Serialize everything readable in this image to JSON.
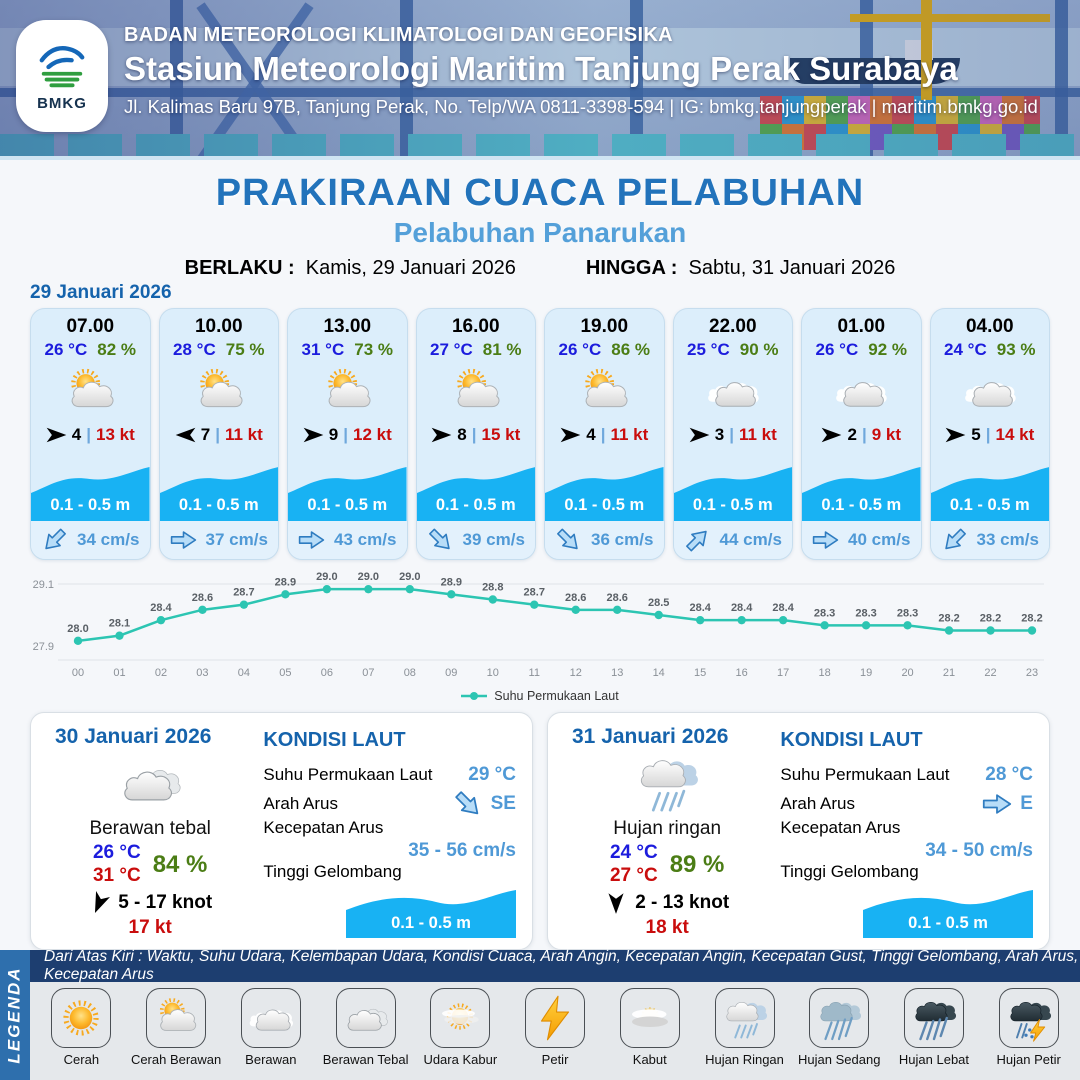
{
  "header": {
    "org": "BADAN METEOROLOGI KLIMATOLOGI DAN GEOFISIKA",
    "station": "Stasiun Meteorologi Maritim Tanjung Perak Surabaya",
    "address": "Jl. Kalimas Baru 97B, Tanjung Perak, No. Telp/WA 0811-3398-594 | IG: bmkg.tanjungperak | maritim.bmkg.go.id",
    "logo_text": "BMKG"
  },
  "title": {
    "main": "PRAKIRAAN CUACA PELABUHAN",
    "subtitle": "Pelabuhan Panarukan",
    "berlaku_label": "BERLAKU :",
    "berlaku_value": "Kamis, 29 Januari 2026",
    "hingga_label": "HINGGA :",
    "hingga_value": "Sabtu, 31 Januari 2026"
  },
  "forecast": {
    "date": "29 Januari 2026",
    "cards": [
      {
        "time": "07.00",
        "temp": "26 °C",
        "rh": "82 %",
        "icon": "cerah-berawan",
        "wind_dir": "E",
        "wind_speed": "4",
        "gust": "13 kt",
        "wave": "0.1 - 0.5 m",
        "current_dir": "SW",
        "current": "34 cm/s"
      },
      {
        "time": "10.00",
        "temp": "28 °C",
        "rh": "75 %",
        "icon": "cerah-berawan",
        "wind_dir": "W",
        "wind_speed": "7",
        "gust": "11 kt",
        "wave": "0.1 - 0.5 m",
        "current_dir": "E",
        "current": "37 cm/s"
      },
      {
        "time": "13.00",
        "temp": "31 °C",
        "rh": "73 %",
        "icon": "cerah-berawan",
        "wind_dir": "E",
        "wind_speed": "9",
        "gust": "12 kt",
        "wave": "0.1 - 0.5 m",
        "current_dir": "E",
        "current": "43 cm/s"
      },
      {
        "time": "16.00",
        "temp": "27 °C",
        "rh": "81 %",
        "icon": "cerah-berawan",
        "wind_dir": "E",
        "wind_speed": "8",
        "gust": "15 kt",
        "wave": "0.1 - 0.5 m",
        "current_dir": "SE",
        "current": "39 cm/s"
      },
      {
        "time": "19.00",
        "temp": "26 °C",
        "rh": "86 %",
        "icon": "cerah-berawan",
        "wind_dir": "E",
        "wind_speed": "4",
        "gust": "11 kt",
        "wave": "0.1 - 0.5 m",
        "current_dir": "SE",
        "current": "36 cm/s"
      },
      {
        "time": "22.00",
        "temp": "25 °C",
        "rh": "90 %",
        "icon": "berawan",
        "wind_dir": "E",
        "wind_speed": "3",
        "gust": "11 kt",
        "wave": "0.1 - 0.5 m",
        "current_dir": "NE",
        "current": "44 cm/s"
      },
      {
        "time": "01.00",
        "temp": "26 °C",
        "rh": "92 %",
        "icon": "berawan",
        "wind_dir": "E",
        "wind_speed": "2",
        "gust": "9 kt",
        "wave": "0.1 - 0.5 m",
        "current_dir": "E",
        "current": "40 cm/s"
      },
      {
        "time": "04.00",
        "temp": "24 °C",
        "rh": "93 %",
        "icon": "berawan",
        "wind_dir": "E",
        "wind_speed": "5",
        "gust": "14 kt",
        "wave": "0.1 - 0.5 m",
        "current_dir": "SW",
        "current": "33 cm/s"
      }
    ]
  },
  "chart_data": {
    "type": "line",
    "x": [
      "00",
      "01",
      "02",
      "03",
      "04",
      "05",
      "06",
      "07",
      "08",
      "09",
      "10",
      "11",
      "12",
      "13",
      "14",
      "15",
      "16",
      "17",
      "18",
      "19",
      "20",
      "21",
      "22",
      "23"
    ],
    "values": [
      28.0,
      28.1,
      28.4,
      28.6,
      28.7,
      28.9,
      29.0,
      29.0,
      29.0,
      28.9,
      28.8,
      28.7,
      28.6,
      28.6,
      28.5,
      28.4,
      28.4,
      28.4,
      28.3,
      28.3,
      28.3,
      28.2,
      28.2,
      28.2
    ],
    "series_name": "Suhu Permukaan Laut",
    "ylim": [
      27.9,
      29.1
    ],
    "ytick_labels": [
      "27.9",
      "29.1"
    ],
    "line_color": "#2cc5b2",
    "grid": "horizontal-top-bottom",
    "legend_position": "bottom-center"
  },
  "daily": [
    {
      "date": "30 Januari 2026",
      "icon": "berawan-tebal",
      "condition": "Berawan tebal",
      "temp_min": "26 °C",
      "temp_max": "31 °C",
      "rh": "84 %",
      "wind_dir": "SSW",
      "wind_range": "5  - 17 knot",
      "gust": "17 kt",
      "sea": {
        "heading": "KONDISI LAUT",
        "sst_label": "Suhu Permukaan Laut",
        "sst": "29 °C",
        "dir_label": "Arah Arus",
        "dir": "SE",
        "speed_label": "Kecepatan Arus",
        "speed": "35  - 56 cm/s",
        "wave_label": "Tinggi Gelombang",
        "wave": "0.1 - 0.5 m"
      }
    },
    {
      "date": "31 Januari 2026",
      "icon": "hujan-ringan",
      "condition": "Hujan ringan",
      "temp_min": "24 °C",
      "temp_max": "27 °C",
      "rh": "89 %",
      "wind_dir": "S",
      "wind_range": "2  - 13 knot",
      "gust": "18 kt",
      "sea": {
        "heading": "KONDISI LAUT",
        "sst_label": "Suhu Permukaan Laut",
        "sst": "28 °C",
        "dir_label": "Arah Arus",
        "dir": "E",
        "speed_label": "Kecepatan Arus",
        "speed": "34 - 50 cm/s",
        "wave_label": "Tinggi Gelombang",
        "wave": "0.1 - 0.5 m"
      }
    }
  ],
  "legend": {
    "sidebar": "LEGENDA",
    "strip": "Dari Atas Kiri : Waktu, Suhu Udara, Kelembapan Udara, Kondisi Cuaca, Arah Angin, Kecepatan Angin, Kecepatan Gust, Tinggi Gelombang, Arah Arus, Kecepatan Arus",
    "items": [
      {
        "label": "Cerah",
        "icon": "cerah"
      },
      {
        "label": "Cerah Berawan",
        "icon": "cerah-berawan"
      },
      {
        "label": "Berawan",
        "icon": "berawan"
      },
      {
        "label": "Berawan Tebal",
        "icon": "berawan-tebal"
      },
      {
        "label": "Udara Kabur",
        "icon": "udara-kabur"
      },
      {
        "label": "Petir",
        "icon": "petir"
      },
      {
        "label": "Kabut",
        "icon": "kabut"
      },
      {
        "label": "Hujan Ringan",
        "icon": "hujan-ringan"
      },
      {
        "label": "Hujan Sedang",
        "icon": "hujan-sedang"
      },
      {
        "label": "Hujan Lebat",
        "icon": "hujan-lebat"
      },
      {
        "label": "Hujan Petir",
        "icon": "hujan-petir"
      }
    ]
  },
  "colors": {
    "heading_blue": "#1563ac",
    "title_blue": "#2273bb",
    "subtitle_blue": "#54a0d9",
    "temp_blue": "#1c1cdd",
    "rh_green": "#4b7d15",
    "gust_red": "#c90d0d",
    "wave_blue": "#18b2f3",
    "current_blue": "#4f99d6",
    "chart_teal": "#2cc5b2"
  }
}
